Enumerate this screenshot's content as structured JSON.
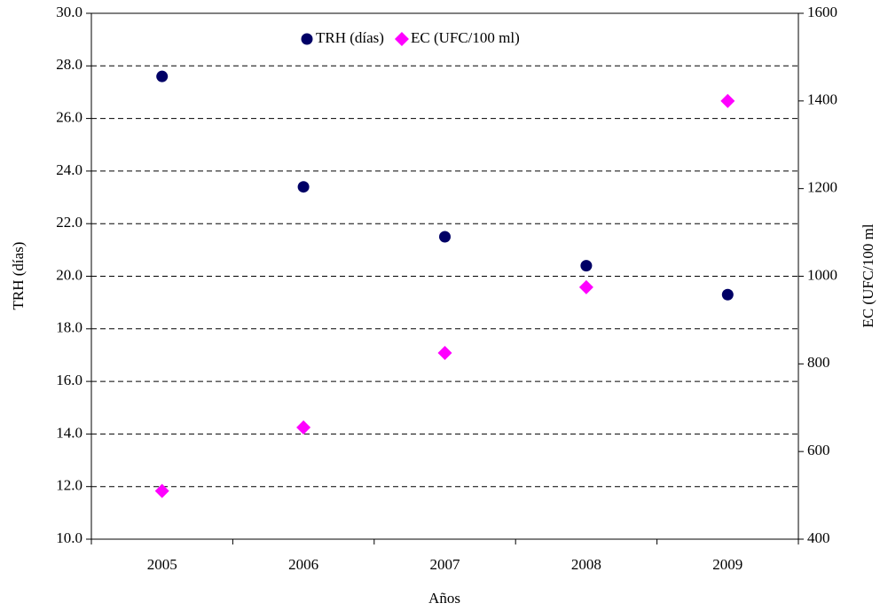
{
  "chart_data": {
    "type": "scatter",
    "x_label": "Años",
    "y_label": "TRH (días)",
    "y2_label": "EC (UFC/100 ml",
    "categories": [
      "2005",
      "2006",
      "2007",
      "2008",
      "2009"
    ],
    "series": [
      {
        "name": "TRH (días)",
        "color": "#000066",
        "marker": "circle",
        "values": [
          27.6,
          23.4,
          21.5,
          20.4,
          19.3
        ]
      },
      {
        "name": "EC (UFC/100 ml)",
        "color": "#ff00ff",
        "marker": "diamond",
        "axis": "y2",
        "values": [
          510,
          655,
          825,
          975,
          1400
        ]
      }
    ],
    "ylim": [
      10,
      30
    ],
    "yticks": [
      {
        "value": 10,
        "label": "10.0"
      },
      {
        "value": 12,
        "label": "12.0"
      },
      {
        "value": 14,
        "label": "14.0"
      },
      {
        "value": 16,
        "label": "16.0"
      },
      {
        "value": 18,
        "label": "18.0"
      },
      {
        "value": 20,
        "label": "20.0"
      },
      {
        "value": 22,
        "label": "22.0"
      },
      {
        "value": 24,
        "label": "24.0"
      },
      {
        "value": 26,
        "label": "26.0"
      },
      {
        "value": 28,
        "label": "28.0"
      },
      {
        "value": 30,
        "label": "30.0"
      }
    ],
    "y2lim": [
      400,
      1600
    ],
    "y2ticks": [
      400,
      600,
      800,
      1000,
      1200,
      1400,
      1600
    ],
    "grid": true,
    "legend": "top"
  }
}
